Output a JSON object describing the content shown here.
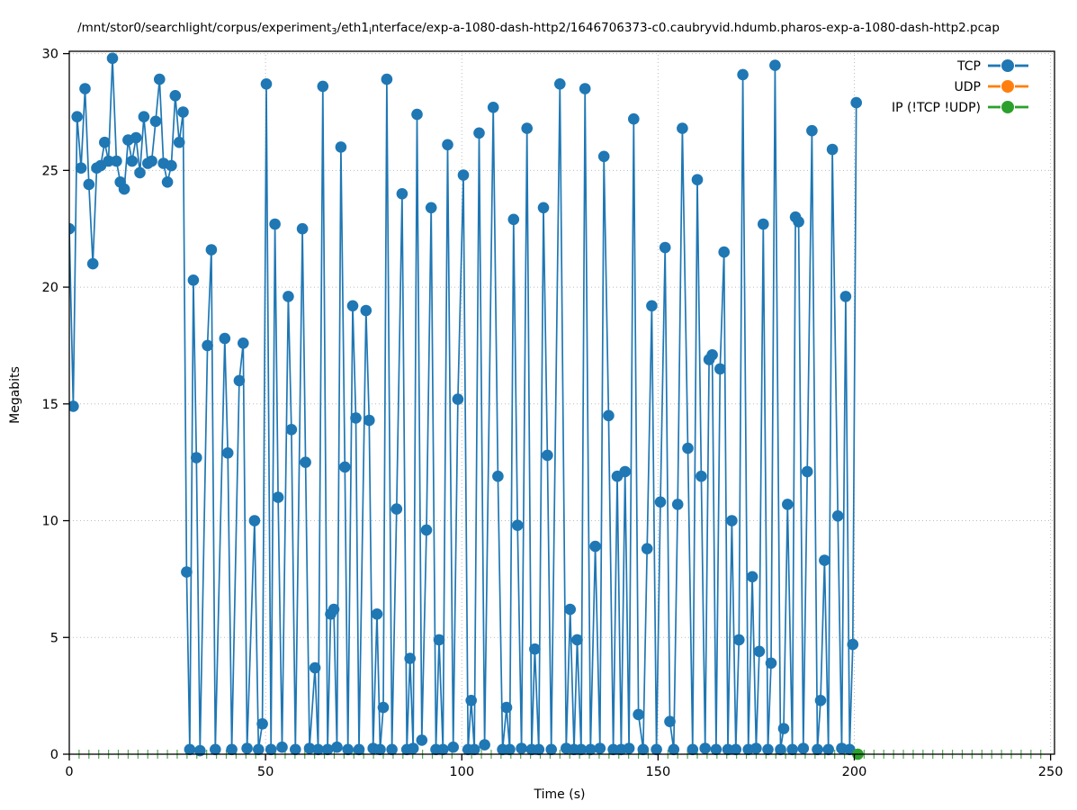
{
  "title_parts": {
    "p1": "/mnt/stor0/searchlight/corpus/experiment",
    "s1": "3",
    "p2": "/eth1",
    "s2": "i",
    "p3": "nterface/exp-a-1080-dash-http2/1646706373-c0.caubryvid.hdumb.pharos-exp-a-1080-dash-http2.pcap"
  },
  "axes": {
    "xlabel": "Time (s)",
    "ylabel": "Megabits"
  },
  "colors": {
    "tcp": "#1f77b4",
    "udp": "#ff7f0e",
    "ip": "#2ca02c",
    "grid": "#bbbbbb",
    "axis": "#000000",
    "minor_xtick": "#55a855",
    "text": "#000000"
  },
  "legend": {
    "position": "upper right",
    "items": [
      {
        "label": "TCP",
        "color": "#1f77b4"
      },
      {
        "label": "UDP",
        "color": "#ff7f0e"
      },
      {
        "label": "IP (!TCP  !UDP)",
        "color": "#2ca02c"
      }
    ]
  },
  "chart_data": {
    "type": "line",
    "title": "/mnt/stor0/searchlight/corpus/experiment_3/eth1_interface/exp-a-1080-dash-http2/1646706373-c0.caubryvid.hdumb.pharos-exp-a-1080-dash-http2.pcap",
    "xlabel": "Time (s)",
    "ylabel": "Megabits",
    "xlim": [
      0,
      251
    ],
    "ylim": [
      0,
      30.1
    ],
    "xticks": [
      0,
      50,
      100,
      150,
      200,
      250
    ],
    "yticks": [
      0,
      5,
      10,
      15,
      20,
      25,
      30
    ],
    "grid": true,
    "minor_xtick_interval": 2.5,
    "legend_position": "upper right",
    "series": [
      {
        "name": "TCP",
        "color": "#1f77b4",
        "marker": "circle",
        "points": [
          [
            0,
            22.5
          ],
          [
            1,
            14.9
          ],
          [
            2,
            27.3
          ],
          [
            3,
            25.1
          ],
          [
            4,
            28.5
          ],
          [
            5,
            24.4
          ],
          [
            6,
            21.0
          ],
          [
            7,
            25.1
          ],
          [
            8,
            25.2
          ],
          [
            9,
            26.2
          ],
          [
            10,
            25.4
          ],
          [
            11,
            29.8
          ],
          [
            12,
            25.4
          ],
          [
            13,
            24.5
          ],
          [
            14,
            24.2
          ],
          [
            15,
            26.3
          ],
          [
            16,
            25.4
          ],
          [
            17,
            26.4
          ],
          [
            18,
            24.9
          ],
          [
            19,
            27.3
          ],
          [
            20,
            25.3
          ],
          [
            21,
            25.4
          ],
          [
            22,
            27.1
          ],
          [
            23,
            28.9
          ],
          [
            24,
            25.3
          ],
          [
            25,
            24.5
          ],
          [
            26,
            25.2
          ],
          [
            27,
            28.2
          ],
          [
            28,
            26.2
          ],
          [
            29,
            27.5
          ],
          [
            29.9,
            7.8
          ],
          [
            30.7,
            0.2
          ],
          [
            31.6,
            20.3
          ],
          [
            32.4,
            12.7
          ],
          [
            33.3,
            0.15
          ],
          [
            35.2,
            17.5
          ],
          [
            36.2,
            21.6
          ],
          [
            37.2,
            0.2
          ],
          [
            39.6,
            17.8
          ],
          [
            40.4,
            12.9
          ],
          [
            41.4,
            0.2
          ],
          [
            43.3,
            16.0
          ],
          [
            44.3,
            17.6
          ],
          [
            45.3,
            0.25
          ],
          [
            47.2,
            10.0
          ],
          [
            48.2,
            0.2
          ],
          [
            49.2,
            1.3
          ],
          [
            50.2,
            28.7
          ],
          [
            51.4,
            0.2
          ],
          [
            52.4,
            22.7
          ],
          [
            53.2,
            11.0
          ],
          [
            54.2,
            0.3
          ],
          [
            55.8,
            19.6
          ],
          [
            56.6,
            13.9
          ],
          [
            57.6,
            0.2
          ],
          [
            59.4,
            22.5
          ],
          [
            60.2,
            12.5
          ],
          [
            61.2,
            0.25
          ],
          [
            62.6,
            3.7
          ],
          [
            63.4,
            0.2
          ],
          [
            64.6,
            28.6
          ],
          [
            65.8,
            0.2
          ],
          [
            66.6,
            6.0
          ],
          [
            67.4,
            6.2
          ],
          [
            68.2,
            0.3
          ],
          [
            69.2,
            26.0
          ],
          [
            70.2,
            12.3
          ],
          [
            71.0,
            0.2
          ],
          [
            72.2,
            19.2
          ],
          [
            73.0,
            14.4
          ],
          [
            73.8,
            0.2
          ],
          [
            75.6,
            19.0
          ],
          [
            76.4,
            14.3
          ],
          [
            77.4,
            0.25
          ],
          [
            78.4,
            6.0
          ],
          [
            79.2,
            0.2
          ],
          [
            80.0,
            2.0
          ],
          [
            80.9,
            28.9
          ],
          [
            82.2,
            0.2
          ],
          [
            83.4,
            10.5
          ],
          [
            84.8,
            24.0
          ],
          [
            86.0,
            0.2
          ],
          [
            86.8,
            4.1
          ],
          [
            87.6,
            0.25
          ],
          [
            88.6,
            27.4
          ],
          [
            89.8,
            0.6
          ],
          [
            91.0,
            9.6
          ],
          [
            92.2,
            23.4
          ],
          [
            93.4,
            0.2
          ],
          [
            94.2,
            4.9
          ],
          [
            95.2,
            0.2
          ],
          [
            96.4,
            26.1
          ],
          [
            97.8,
            0.3
          ],
          [
            99.0,
            15.2
          ],
          [
            100.4,
            24.8
          ],
          [
            101.6,
            0.2
          ],
          [
            102.4,
            2.3
          ],
          [
            103.2,
            0.2
          ],
          [
            104.4,
            26.6
          ],
          [
            105.8,
            0.4
          ],
          [
            108.0,
            27.7
          ],
          [
            109.2,
            11.9
          ],
          [
            110.4,
            0.2
          ],
          [
            111.4,
            2.0
          ],
          [
            112.2,
            0.2
          ],
          [
            113.2,
            22.9
          ],
          [
            114.2,
            9.8
          ],
          [
            115.2,
            0.25
          ],
          [
            116.6,
            26.8
          ],
          [
            117.8,
            0.2
          ],
          [
            118.6,
            4.5
          ],
          [
            119.6,
            0.2
          ],
          [
            120.8,
            23.4
          ],
          [
            121.8,
            12.8
          ],
          [
            122.8,
            0.2
          ],
          [
            125.0,
            28.7
          ],
          [
            126.6,
            0.25
          ],
          [
            127.6,
            6.2
          ],
          [
            128.6,
            0.2
          ],
          [
            129.4,
            4.9
          ],
          [
            130.4,
            0.2
          ],
          [
            131.4,
            28.5
          ],
          [
            132.8,
            0.2
          ],
          [
            134.0,
            8.9
          ],
          [
            135.2,
            0.25
          ],
          [
            136.2,
            25.6
          ],
          [
            137.4,
            14.5
          ],
          [
            138.6,
            0.2
          ],
          [
            139.6,
            11.9
          ],
          [
            140.6,
            0.2
          ],
          [
            141.6,
            12.1
          ],
          [
            142.6,
            0.25
          ],
          [
            143.8,
            27.2
          ],
          [
            145.0,
            1.7
          ],
          [
            146.2,
            0.2
          ],
          [
            147.2,
            8.8
          ],
          [
            148.4,
            19.2
          ],
          [
            149.6,
            0.2
          ],
          [
            150.6,
            10.8
          ],
          [
            151.8,
            21.7
          ],
          [
            153.0,
            1.4
          ],
          [
            154.0,
            0.2
          ],
          [
            155.0,
            10.7
          ],
          [
            156.2,
            26.8
          ],
          [
            157.6,
            13.1
          ],
          [
            158.8,
            0.2
          ],
          [
            160.0,
            24.6
          ],
          [
            161.0,
            11.9
          ],
          [
            162.0,
            0.25
          ],
          [
            163.0,
            16.9
          ],
          [
            163.8,
            17.1
          ],
          [
            164.8,
            0.2
          ],
          [
            165.8,
            16.5
          ],
          [
            166.8,
            21.5
          ],
          [
            167.8,
            0.2
          ],
          [
            168.8,
            10.0
          ],
          [
            169.8,
            0.2
          ],
          [
            170.6,
            4.9
          ],
          [
            171.6,
            29.1
          ],
          [
            173.0,
            0.2
          ],
          [
            174.0,
            7.6
          ],
          [
            175.0,
            0.25
          ],
          [
            175.8,
            4.4
          ],
          [
            176.8,
            22.7
          ],
          [
            178.0,
            0.2
          ],
          [
            178.8,
            3.9
          ],
          [
            179.8,
            29.5
          ],
          [
            181.2,
            0.2
          ],
          [
            182.0,
            1.1
          ],
          [
            183.0,
            10.7
          ],
          [
            184.2,
            0.2
          ],
          [
            185.0,
            23.0
          ],
          [
            185.8,
            22.8
          ],
          [
            187.0,
            0.25
          ],
          [
            188.0,
            12.1
          ],
          [
            189.2,
            26.7
          ],
          [
            190.6,
            0.2
          ],
          [
            191.4,
            2.3
          ],
          [
            192.4,
            8.3
          ],
          [
            193.4,
            0.2
          ],
          [
            194.4,
            25.9
          ],
          [
            195.8,
            10.2
          ],
          [
            196.8,
            0.25
          ],
          [
            197.8,
            19.6
          ],
          [
            198.8,
            0.2
          ],
          [
            199.6,
            4.7
          ],
          [
            200.5,
            27.9
          ]
        ]
      },
      {
        "name": "UDP",
        "color": "#ff7f0e",
        "marker": "circle",
        "points": []
      },
      {
        "name": "IP (!TCP  !UDP)",
        "color": "#2ca02c",
        "marker": "circle",
        "points": [
          [
            200.9,
            0.0
          ]
        ]
      }
    ]
  }
}
